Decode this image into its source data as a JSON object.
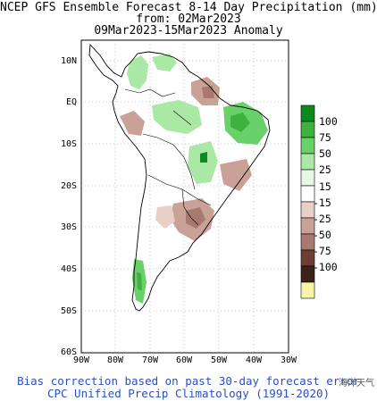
{
  "header": {
    "title_line1": "NCEP GFS Ensemble Forecast 8-14 Day Precipitation (mm)",
    "title_line2": "from: 02Mar2023",
    "title_line3": "09Mar2023-15Mar2023 Anomaly"
  },
  "axes": {
    "x_ticks": [
      "90W",
      "80W",
      "70W",
      "60W",
      "50W",
      "40W",
      "30W"
    ],
    "y_ticks": [
      "10N",
      "EQ",
      "10S",
      "20S",
      "30S",
      "40S",
      "50S",
      "60S"
    ]
  },
  "legend": {
    "labels": [
      "100",
      "75",
      "50",
      "25",
      "15",
      "-15",
      "-25",
      "-50",
      "-75",
      "-100"
    ],
    "colors": [
      "#0b8a1f",
      "#3fb13f",
      "#6ad06a",
      "#a9e8a5",
      "#e6f8e3",
      "#ffffff",
      "#e9cfc8",
      "#c9a196",
      "#a87a6f",
      "#6b3f33",
      "#3d2218",
      "#f7f3a8"
    ]
  },
  "footer": {
    "line1": "Bias correction based on past 30-day forecast error",
    "line2": "CPC Unified Precip Climatology (1991-2020)",
    "watermark": "海洋天气"
  }
}
